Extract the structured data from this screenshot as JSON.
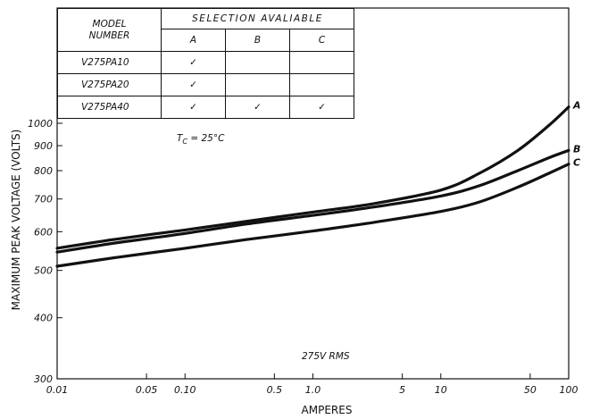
{
  "table": {
    "header_model_line1": "MODEL",
    "header_model_line2": "NUMBER",
    "header_selection": "SELECTION  AVALIABLE",
    "columns": [
      "A",
      "B",
      "C"
    ],
    "rows": [
      {
        "model": "V275PA10",
        "marks": [
          "✓",
          "",
          ""
        ]
      },
      {
        "model": "V275PA20",
        "marks": [
          "✓",
          "",
          ""
        ]
      },
      {
        "model": "V275PA40",
        "marks": [
          "✓",
          "✓",
          "✓"
        ]
      }
    ]
  },
  "chart_data": {
    "type": "line",
    "title": "",
    "xlabel": "AMPERES",
    "ylabel": "MAXIMUM  PEAK  VOLTAGE (VOLTS)",
    "x_scale": "log",
    "y_scale": "log",
    "xlim": [
      0.01,
      100
    ],
    "ylim": [
      300,
      1000
    ],
    "x_ticks": [
      0.01,
      0.05,
      0.1,
      0.5,
      1.0,
      5,
      10,
      50,
      100
    ],
    "x_tick_labels": [
      "0.01",
      "0.05",
      "0.10",
      "0.5",
      "1.0",
      "5",
      "10",
      "50",
      "100"
    ],
    "y_ticks": [
      300,
      400,
      500,
      600,
      700,
      800,
      900,
      1000
    ],
    "y_tick_labels": [
      "300",
      "400",
      "500",
      "600",
      "700",
      "800",
      "900",
      "1000"
    ],
    "annotations": [
      "TC = 25°C",
      "275V RMS"
    ],
    "grid": false,
    "series": [
      {
        "name": "A",
        "x": [
          0.01,
          0.03,
          0.1,
          0.3,
          1,
          3,
          10,
          20,
          40,
          70,
          100
        ],
        "y": [
          555,
          580,
          605,
          630,
          658,
          685,
          730,
          790,
          880,
          990,
          1080
        ]
      },
      {
        "name": "B",
        "x": [
          0.01,
          0.03,
          0.1,
          0.3,
          1,
          3,
          10,
          20,
          40,
          70,
          100
        ],
        "y": [
          545,
          570,
          595,
          622,
          648,
          674,
          710,
          745,
          800,
          850,
          880
        ]
      },
      {
        "name": "C",
        "x": [
          0.01,
          0.03,
          0.1,
          0.3,
          1,
          3,
          10,
          20,
          40,
          70,
          100
        ],
        "y": [
          510,
          532,
          555,
          578,
          602,
          627,
          660,
          690,
          740,
          790,
          825
        ]
      }
    ]
  }
}
